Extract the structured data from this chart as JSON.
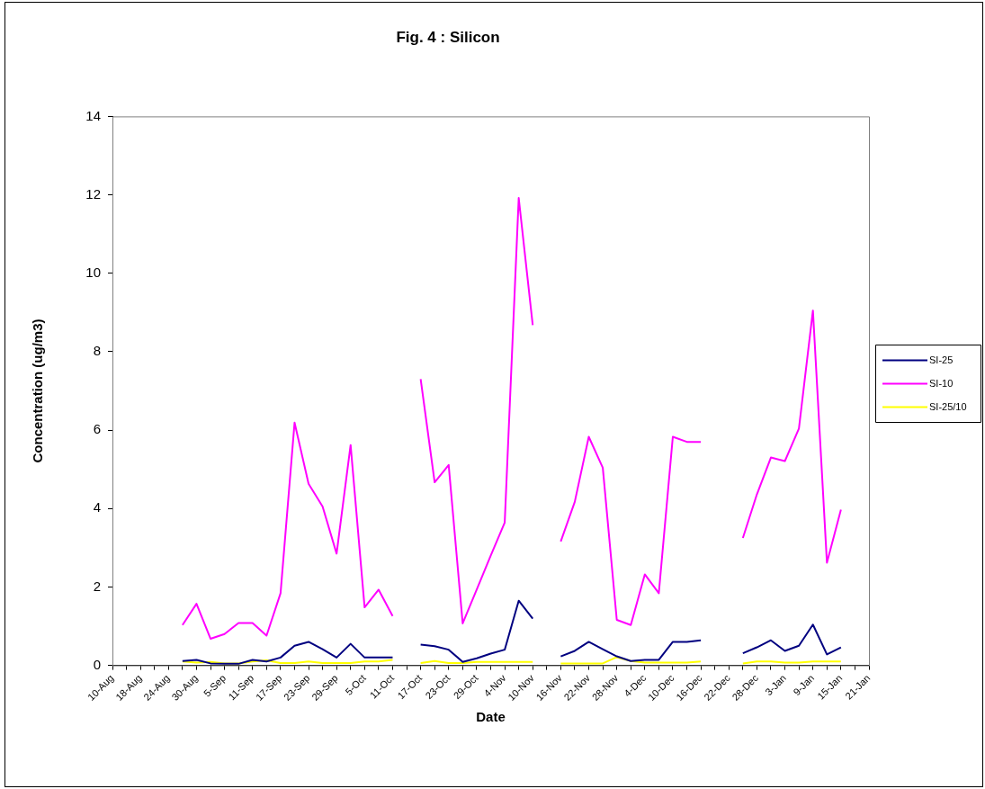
{
  "chart_data": {
    "type": "line",
    "title": "Fig. 4 : Silicon",
    "xlabel": "Date",
    "ylabel": "Concentration (ug/m3)",
    "categories": [
      "10-Aug",
      null,
      "18-Aug",
      null,
      "24-Aug",
      null,
      "30-Aug",
      null,
      "5-Sep",
      null,
      "11-Sep",
      null,
      "17-Sep",
      null,
      "23-Sep",
      null,
      "29-Sep",
      null,
      "5-Oct",
      null,
      "11-Oct",
      null,
      "17-Oct",
      null,
      "23-Oct",
      null,
      "29-Oct",
      null,
      "4-Nov",
      null,
      "10-Nov",
      null,
      "16-Nov",
      null,
      "22-Nov",
      null,
      "28-Nov",
      null,
      "4-Dec",
      null,
      "10-Dec",
      null,
      "16-Dec",
      null,
      "22-Dec",
      null,
      "28-Dec",
      null,
      "3-Jan",
      null,
      "9-Jan",
      null,
      "15-Jan",
      null,
      "21-Jan"
    ],
    "series": [
      {
        "name": "SI-25",
        "color": "#000080",
        "values": [
          null,
          null,
          null,
          null,
          null,
          0.11,
          0.14,
          0.05,
          0.04,
          0.04,
          0.14,
          0.1,
          0.2,
          0.5,
          0.6,
          0.41,
          0.2,
          0.55,
          0.2,
          0.2,
          0.2,
          null,
          0.53,
          0.49,
          0.4,
          0.09,
          0.18,
          0.3,
          0.4,
          1.65,
          1.19,
          null,
          0.23,
          0.37,
          0.6,
          0.41,
          0.23,
          0.11,
          0.14,
          0.14,
          0.6,
          0.6,
          0.64,
          null,
          null,
          0.31,
          0.46,
          0.64,
          0.37,
          0.5,
          1.04,
          0.28,
          0.46,
          null,
          null
        ]
      },
      {
        "name": "SI-10",
        "color": "#ff00ff",
        "values": [
          null,
          null,
          null,
          null,
          null,
          1.03,
          1.57,
          0.68,
          0.8,
          1.08,
          1.08,
          0.76,
          1.84,
          6.19,
          4.63,
          4.05,
          2.85,
          5.62,
          1.48,
          1.93,
          1.26,
          null,
          7.3,
          4.67,
          5.11,
          1.07,
          1.93,
          2.8,
          3.64,
          11.92,
          8.68,
          null,
          3.16,
          4.17,
          5.83,
          5.04,
          1.16,
          1.03,
          2.32,
          1.84,
          5.83,
          5.7,
          5.7,
          null,
          null,
          3.25,
          4.36,
          5.3,
          5.21,
          6.04,
          9.05,
          2.62,
          3.97,
          null,
          null
        ]
      },
      {
        "name": "SI-25/10",
        "color": "#ffff00",
        "values": [
          null,
          null,
          null,
          null,
          null,
          0.1,
          0.07,
          0.09,
          0.05,
          0.05,
          0.1,
          0.13,
          0.06,
          0.06,
          0.1,
          0.06,
          0.06,
          0.06,
          0.1,
          0.1,
          0.14,
          null,
          0.06,
          0.11,
          0.06,
          0.06,
          0.09,
          0.09,
          0.09,
          0.09,
          0.09,
          null,
          0.05,
          0.05,
          0.05,
          0.05,
          0.21,
          0.11,
          0.07,
          0.07,
          0.07,
          0.07,
          0.1,
          null,
          null,
          0.05,
          0.1,
          0.1,
          0.07,
          0.07,
          0.1,
          0.1,
          0.1,
          null,
          null
        ]
      }
    ],
    "ylim": [
      0,
      14
    ],
    "yticks": [
      0,
      2,
      4,
      6,
      8,
      10,
      12,
      14
    ],
    "grid": false,
    "legend": "right",
    "marker": "none",
    "line_style": "solid"
  }
}
